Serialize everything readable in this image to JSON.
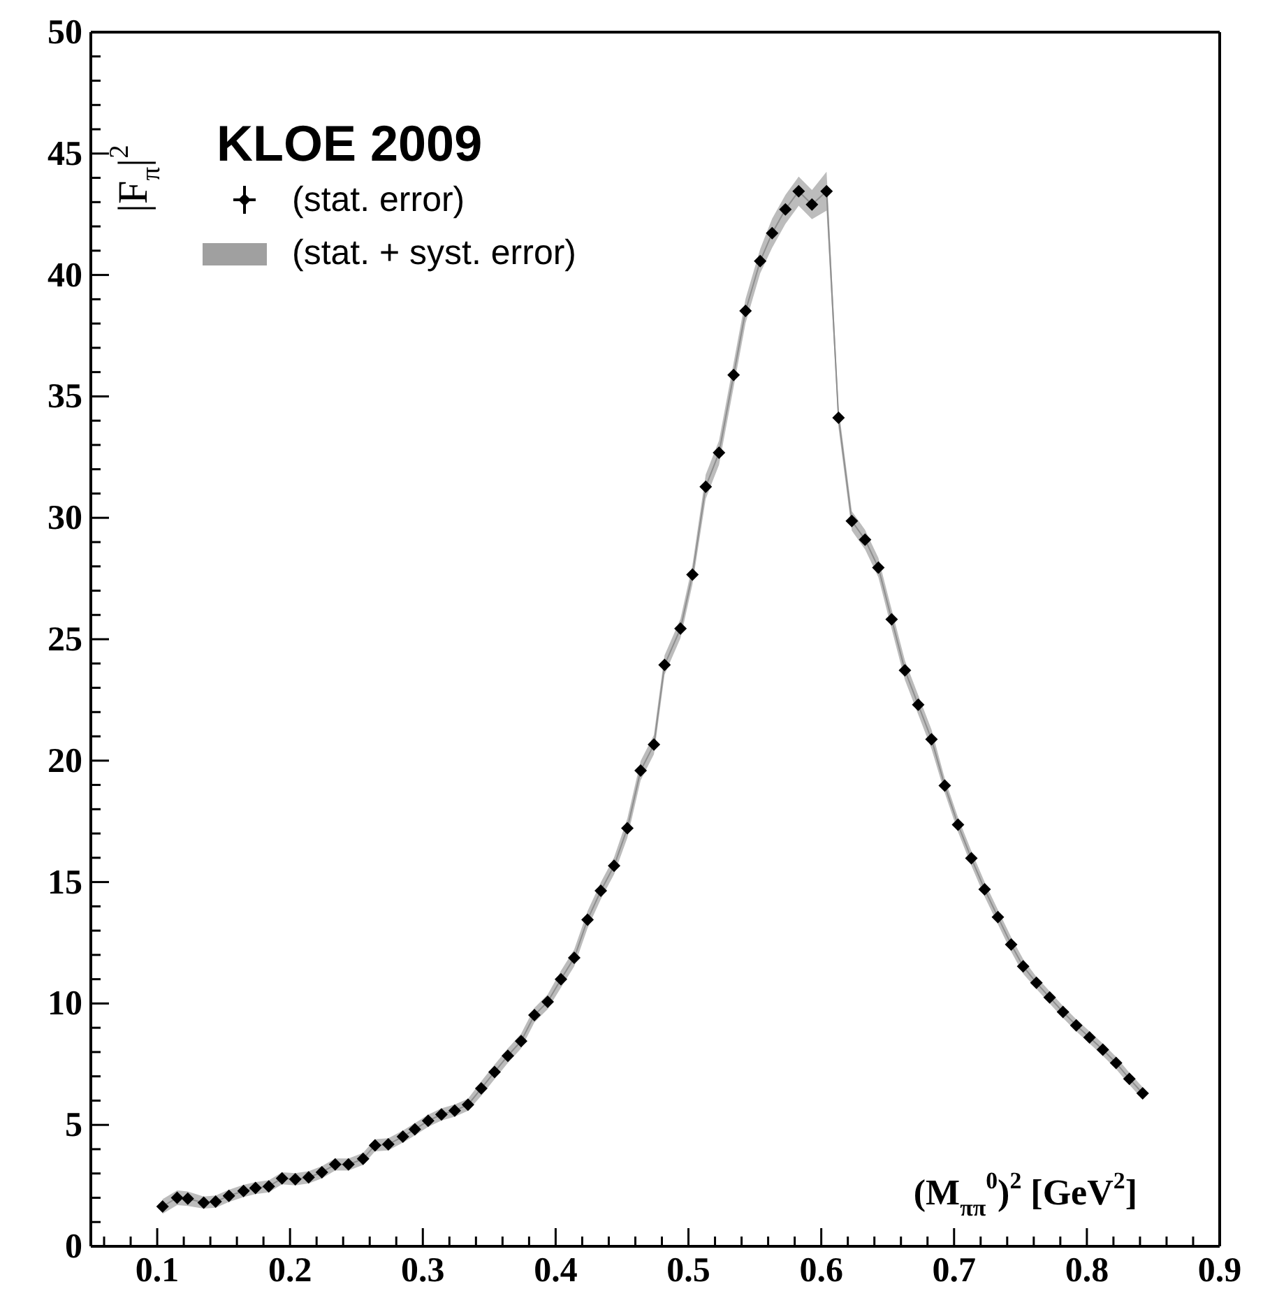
{
  "chart_data": {
    "type": "scatter",
    "xlabel": "(M$_{ππ}$$^{0}$)$^{2}$ [GeV$^{2}$]",
    "ylabel": "|F$_{π}$|$^{2}$",
    "legend_title": "KLOE 2009",
    "legend": "top left",
    "grid": false,
    "x": [
      0.104,
      0.115,
      0.123,
      0.135,
      0.144,
      0.154,
      0.165,
      0.174,
      0.184,
      0.194,
      0.204,
      0.214,
      0.224,
      0.234,
      0.244,
      0.255,
      0.264,
      0.274,
      0.285,
      0.294,
      0.304,
      0.314,
      0.324,
      0.334,
      0.344,
      0.354,
      0.364,
      0.374,
      0.384,
      0.394,
      0.404,
      0.414,
      0.424,
      0.434,
      0.444,
      0.454,
      0.464,
      0.474,
      0.482,
      0.494,
      0.503,
      0.513,
      0.523,
      0.534,
      0.543,
      0.554,
      0.563,
      0.573,
      0.583,
      0.593,
      0.604,
      0.613,
      0.623,
      0.633,
      0.643,
      0.653,
      0.663,
      0.673,
      0.683,
      0.693,
      0.703,
      0.713,
      0.723,
      0.733,
      0.743,
      0.752,
      0.762,
      0.772,
      0.782,
      0.792,
      0.802,
      0.812,
      0.822,
      0.832,
      0.842
    ],
    "series": [
      {
        "name": "(stat. error)",
        "marker": "diamond",
        "color": "#000000",
        "values": [
          1.64,
          2.0,
          1.96,
          1.8,
          1.84,
          2.08,
          2.28,
          2.4,
          2.47,
          2.8,
          2.76,
          2.84,
          3.05,
          3.37,
          3.37,
          3.6,
          4.16,
          4.2,
          4.52,
          4.82,
          5.17,
          5.43,
          5.59,
          5.83,
          6.5,
          7.18,
          7.85,
          8.45,
          9.52,
          10.07,
          11.0,
          11.88,
          13.45,
          14.64,
          15.67,
          17.22,
          19.59,
          20.66,
          23.94,
          25.44,
          27.66,
          31.28,
          32.68,
          35.88,
          38.52,
          40.57,
          41.72,
          42.7,
          43.45,
          42.9,
          43.45,
          34.12,
          29.87,
          29.1,
          27.95,
          25.82,
          23.72,
          22.3,
          20.88,
          18.97,
          17.36,
          15.98,
          14.7,
          13.56,
          12.43,
          11.53,
          10.85,
          10.25,
          9.65,
          9.1,
          8.6,
          8.1,
          7.55,
          6.9,
          6.3
        ]
      },
      {
        "name": "(stat. + syst. error)",
        "type": "line",
        "marker": "none",
        "color": "#8f8f8f",
        "values": [
          1.64,
          2.0,
          1.96,
          1.8,
          1.84,
          2.08,
          2.28,
          2.4,
          2.47,
          2.8,
          2.76,
          2.84,
          3.05,
          3.37,
          3.37,
          3.6,
          4.16,
          4.2,
          4.52,
          4.82,
          5.17,
          5.43,
          5.59,
          5.83,
          6.5,
          7.18,
          7.85,
          8.45,
          9.52,
          10.07,
          11.0,
          11.88,
          13.45,
          14.64,
          15.67,
          17.22,
          19.59,
          20.66,
          23.94,
          25.44,
          27.66,
          31.28,
          32.68,
          35.88,
          38.52,
          40.57,
          41.72,
          42.7,
          43.45,
          42.9,
          43.45,
          34.12,
          29.87,
          29.1,
          27.95,
          25.82,
          23.72,
          22.3,
          20.88,
          18.97,
          17.36,
          15.98,
          14.7,
          13.56,
          12.43,
          11.53,
          10.85,
          10.25,
          9.65,
          9.1,
          8.6,
          8.1,
          7.55,
          6.9,
          6.3
        ],
        "lower": [
          1.34,
          1.7,
          1.66,
          1.55,
          1.59,
          1.83,
          2.03,
          2.15,
          2.22,
          2.55,
          2.51,
          2.59,
          2.8,
          3.12,
          3.12,
          3.35,
          3.91,
          3.95,
          4.27,
          4.57,
          4.92,
          5.18,
          5.34,
          5.58,
          6.2,
          6.88,
          7.55,
          8.15,
          9.22,
          9.77,
          10.65,
          11.53,
          13.1,
          14.29,
          15.32,
          16.82,
          19.19,
          20.26,
          23.54,
          25.04,
          27.26,
          30.78,
          32.18,
          35.38,
          38.02,
          40.07,
          41.12,
          42.1,
          42.85,
          42.3,
          42.65,
          33.72,
          29.47,
          28.7,
          27.55,
          25.42,
          23.32,
          21.9,
          20.48,
          18.67,
          17.06,
          15.68,
          14.4,
          13.26,
          12.13,
          11.23,
          10.6,
          10.0,
          9.4,
          8.85,
          8.35,
          7.85,
          7.3,
          6.65,
          6.05
        ],
        "upper": [
          1.94,
          2.3,
          2.26,
          2.05,
          2.09,
          2.33,
          2.53,
          2.65,
          2.72,
          3.05,
          3.01,
          3.09,
          3.3,
          3.62,
          3.62,
          3.85,
          4.41,
          4.45,
          4.77,
          5.07,
          5.42,
          5.68,
          5.84,
          6.08,
          6.8,
          7.48,
          8.15,
          8.75,
          9.82,
          10.37,
          11.35,
          12.23,
          13.8,
          14.99,
          16.02,
          17.62,
          19.99,
          21.06,
          24.34,
          25.84,
          28.06,
          31.78,
          33.18,
          36.38,
          39.02,
          41.07,
          42.32,
          43.3,
          44.05,
          43.5,
          44.25,
          34.52,
          30.27,
          29.5,
          28.35,
          26.22,
          24.12,
          22.7,
          21.28,
          19.27,
          17.66,
          16.28,
          15.0,
          13.86,
          12.73,
          11.83,
          11.1,
          10.5,
          9.9,
          9.35,
          8.85,
          8.35,
          7.8,
          7.15,
          6.55
        ]
      }
    ],
    "xlim": [
      0.05,
      0.9
    ],
    "xticks": [
      {
        "value": 0.06,
        "label": null
      },
      {
        "value": 0.08,
        "label": null
      },
      0.1,
      {
        "value": 0.12,
        "label": null
      },
      {
        "value": 0.14,
        "label": null
      },
      {
        "value": 0.16,
        "label": null
      },
      {
        "value": 0.18,
        "label": null
      },
      0.2,
      {
        "value": 0.22,
        "label": null
      },
      {
        "value": 0.24,
        "label": null
      },
      {
        "value": 0.26,
        "label": null
      },
      {
        "value": 0.28,
        "label": null
      },
      0.3,
      {
        "value": 0.32,
        "label": null
      },
      {
        "value": 0.34,
        "label": null
      },
      {
        "value": 0.36,
        "label": null
      },
      {
        "value": 0.38,
        "label": null
      },
      0.4,
      {
        "value": 0.42,
        "label": null
      },
      {
        "value": 0.44,
        "label": null
      },
      {
        "value": 0.46,
        "label": null
      },
      {
        "value": 0.48,
        "label": null
      },
      0.5,
      {
        "value": 0.52,
        "label": null
      },
      {
        "value": 0.54,
        "label": null
      },
      {
        "value": 0.56,
        "label": null
      },
      {
        "value": 0.58,
        "label": null
      },
      0.6,
      {
        "value": 0.62,
        "label": null
      },
      {
        "value": 0.64,
        "label": null
      },
      {
        "value": 0.66,
        "label": null
      },
      {
        "value": 0.68,
        "label": null
      },
      0.7,
      {
        "value": 0.72,
        "label": null
      },
      {
        "value": 0.74,
        "label": null
      },
      {
        "value": 0.76,
        "label": null
      },
      {
        "value": 0.78,
        "label": null
      },
      0.8,
      {
        "value": 0.82,
        "label": null
      },
      {
        "value": 0.84,
        "label": null
      },
      {
        "value": 0.86,
        "label": null
      },
      {
        "value": 0.88,
        "label": null
      },
      0.9
    ],
    "ylim": [
      0,
      50
    ],
    "yticks": [
      0,
      {
        "value": 1,
        "label": null
      },
      {
        "value": 2,
        "label": null
      },
      {
        "value": 3,
        "label": null
      },
      {
        "value": 4,
        "label": null
      },
      5,
      {
        "value": 6,
        "label": null
      },
      {
        "value": 7,
        "label": null
      },
      {
        "value": 8,
        "label": null
      },
      {
        "value": 9,
        "label": null
      },
      10,
      {
        "value": 11,
        "label": null
      },
      {
        "value": 12,
        "label": null
      },
      {
        "value": 13,
        "label": null
      },
      {
        "value": 14,
        "label": null
      },
      15,
      {
        "value": 16,
        "label": null
      },
      {
        "value": 17,
        "label": null
      },
      {
        "value": 18,
        "label": null
      },
      {
        "value": 19,
        "label": null
      },
      20,
      {
        "value": 21,
        "label": null
      },
      {
        "value": 22,
        "label": null
      },
      {
        "value": 23,
        "label": null
      },
      {
        "value": 24,
        "label": null
      },
      25,
      {
        "value": 26,
        "label": null
      },
      {
        "value": 27,
        "label": null
      },
      {
        "value": 28,
        "label": null
      },
      {
        "value": 29,
        "label": null
      },
      30,
      {
        "value": 31,
        "label": null
      },
      {
        "value": 32,
        "label": null
      },
      {
        "value": 33,
        "label": null
      },
      {
        "value": 34,
        "label": null
      },
      35,
      {
        "value": 36,
        "label": null
      },
      {
        "value": 37,
        "label": null
      },
      {
        "value": 38,
        "label": null
      },
      {
        "value": 39,
        "label": null
      },
      40,
      {
        "value": 41,
        "label": null
      },
      {
        "value": 42,
        "label": null
      },
      {
        "value": 43,
        "label": null
      },
      {
        "value": 44,
        "label": null
      },
      45,
      {
        "value": 46,
        "label": null
      },
      {
        "value": 47,
        "label": null
      },
      {
        "value": 48,
        "label": null
      },
      {
        "value": 49,
        "label": null
      },
      50
    ]
  }
}
